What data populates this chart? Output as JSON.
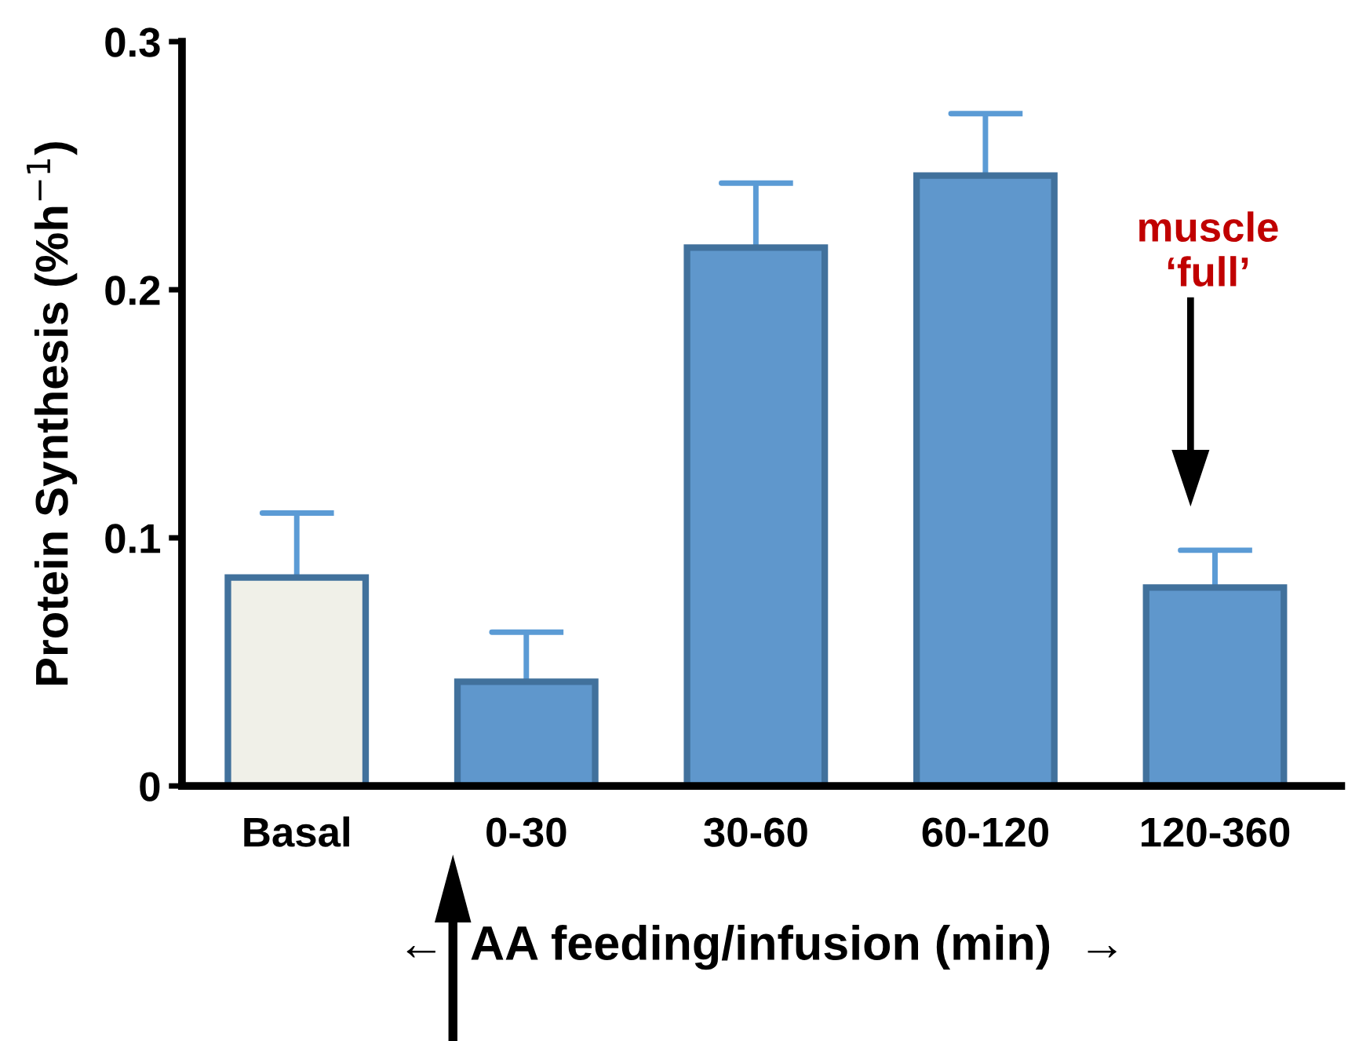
{
  "chart_data": {
    "type": "bar",
    "ylabel": "Protein Synthesis (%h$^{−1}$)",
    "xlabel": "←  AA feeding/infusion (min)  →",
    "categories": [
      "Basal",
      "0-30",
      "30-60",
      "60-120",
      "120-360"
    ],
    "values": [
      0.084,
      0.042,
      0.217,
      0.246,
      0.08
    ],
    "errors": [
      [
        0.084,
        0.11
      ],
      [
        0.042,
        0.062
      ],
      [
        0.217,
        0.243
      ],
      [
        0.246,
        0.271
      ],
      [
        0.08,
        0.095
      ]
    ],
    "colors": [
      "#f0f0e8",
      "#5f97cc",
      "#5f97cc",
      "#5f97cc",
      "#5f97cc"
    ],
    "ylim": [
      0,
      0.3
    ],
    "yticks": [
      0,
      0.1,
      0.2,
      0.3
    ],
    "grid": false,
    "annotations": [
      "muscle\n‘full’"
    ]
  }
}
